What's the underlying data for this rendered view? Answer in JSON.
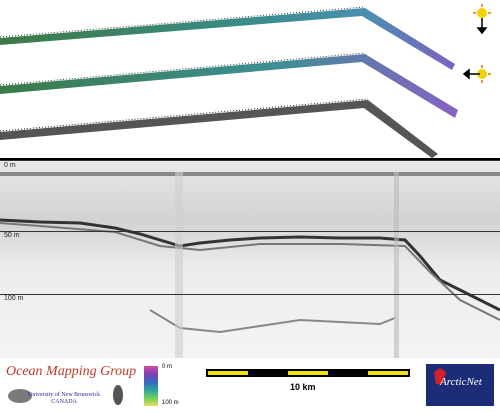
{
  "echogram": {
    "depth_labels": [
      "0 m",
      "50 m",
      "100 m"
    ]
  },
  "legend": {
    "org_name": "Ocean Mapping Group",
    "institution_line1": "University of New Brunswick",
    "institution_line2": "CANADA",
    "colorbar_top": "0 m",
    "colorbar_bottom": "100 m",
    "scale_label": "10 km",
    "partner_logo": "ArcticNet"
  },
  "icons": {
    "sun_icon": "sun-icon",
    "down_arrow": "arrow-down-icon",
    "left_arrow": "arrow-left-icon"
  }
}
